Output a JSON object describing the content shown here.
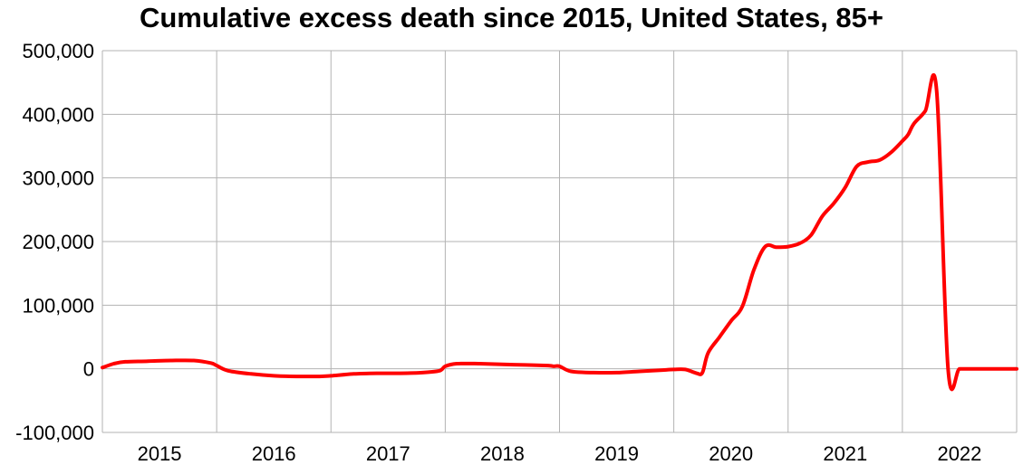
{
  "chart_data": {
    "type": "line",
    "title": "Cumulative excess death since 2015, United States, 85+",
    "xlabel": "",
    "ylabel": "",
    "x_tick_labels": [
      "2015",
      "2016",
      "2017",
      "2018",
      "2019",
      "2020",
      "2021",
      "2022"
    ],
    "y_tick_labels": [
      "-100,000",
      "0",
      "100,000",
      "200,000",
      "300,000",
      "400,000",
      "500,000"
    ],
    "y_ticks": [
      -100000,
      0,
      100000,
      200000,
      300000,
      400000,
      500000
    ],
    "xlim": [
      2015.0,
      2023.0
    ],
    "ylim": [
      -100000,
      500000
    ],
    "grid": true,
    "legend": "none",
    "series": [
      {
        "color": "#ff0000",
        "x": [
          2015.0,
          2015.1,
          2015.2,
          2015.4,
          2015.6,
          2015.8,
          2015.95,
          2016.0,
          2016.1,
          2016.3,
          2016.5,
          2016.7,
          2016.9,
          2017.0,
          2017.2,
          2017.4,
          2017.6,
          2017.8,
          2017.95,
          2018.0,
          2018.1,
          2018.3,
          2018.5,
          2018.7,
          2018.9,
          2018.95,
          2019.0,
          2019.1,
          2019.3,
          2019.5,
          2019.7,
          2019.9,
          2020.0,
          2020.1,
          2020.2,
          2020.25,
          2020.3,
          2020.4,
          2020.5,
          2020.6,
          2020.7,
          2020.8,
          2020.9,
          2021.0,
          2021.1,
          2021.2,
          2021.3,
          2021.4,
          2021.5,
          2021.6,
          2021.7,
          2021.8,
          2021.9,
          2022.0,
          2022.05,
          2022.1,
          2022.2,
          2022.3,
          2022.4,
          2022.5,
          2022.6,
          2022.7,
          2022.8,
          2022.9,
          2023.0
        ],
        "y": [
          2000,
          8000,
          11000,
          12000,
          13000,
          13000,
          9000,
          5000,
          -3000,
          -8000,
          -11000,
          -12000,
          -12000,
          -11000,
          -8000,
          -7000,
          -7000,
          -6000,
          -3000,
          4000,
          8000,
          8000,
          7000,
          6000,
          5000,
          4000,
          4000,
          -4000,
          -6000,
          -6000,
          -4000,
          -2000,
          -1000,
          -1000,
          -7000,
          -6000,
          25000,
          50000,
          75000,
          98000,
          155000,
          192000,
          191000,
          192000,
          197000,
          210000,
          240000,
          260000,
          285000,
          318000,
          325000,
          328000,
          340000,
          358000,
          368000,
          385000,
          405000,
          437000,
          0,
          0,
          0,
          0,
          0,
          0,
          0
        ]
      }
    ]
  }
}
